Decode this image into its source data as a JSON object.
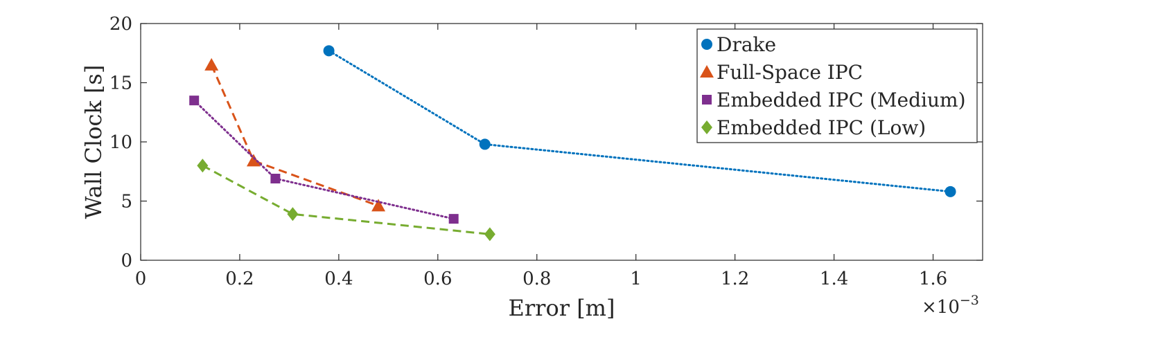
{
  "chart_data": {
    "type": "line",
    "title": "",
    "xlabel": "Error [m]",
    "ylabel": "Wall Clock [s]",
    "x_exponent_label": "×10",
    "x_exponent_power": "−3",
    "xlim": [
      0,
      1.7
    ],
    "ylim": [
      0,
      20
    ],
    "xticks": [
      0,
      0.2,
      0.4,
      0.6,
      0.8,
      1,
      1.2,
      1.4,
      1.6
    ],
    "xtick_labels": [
      "0",
      "0.2",
      "0.4",
      "0.6",
      "0.8",
      "1",
      "1.2",
      "1.4",
      "1.6"
    ],
    "yticks": [
      0,
      5,
      10,
      15,
      20
    ],
    "ytick_labels": [
      "0",
      "5",
      "10",
      "15",
      "20"
    ],
    "grid": false,
    "legend_position": "top-right",
    "series": [
      {
        "name": "Drake",
        "color": "#0072BD",
        "marker": "circle",
        "line_style": "dotted",
        "x": [
          0.38,
          0.695,
          1.635
        ],
        "y": [
          17.7,
          9.8,
          5.8
        ]
      },
      {
        "name": "Full-Space IPC",
        "color": "#D95319",
        "marker": "triangle",
        "line_style": "dashed",
        "x": [
          0.143,
          0.228,
          0.48
        ],
        "y": [
          16.5,
          8.4,
          4.6
        ]
      },
      {
        "name": "Embedded IPC (Medium)",
        "color": "#7E2F8E",
        "marker": "square",
        "line_style": "dotted",
        "x": [
          0.108,
          0.272,
          0.632
        ],
        "y": [
          13.5,
          6.9,
          3.5
        ]
      },
      {
        "name": "Embedded IPC (Low)",
        "color": "#77AC30",
        "marker": "diamond",
        "line_style": "dashed",
        "x": [
          0.125,
          0.307,
          0.705
        ],
        "y": [
          8.0,
          3.9,
          2.2
        ]
      }
    ]
  }
}
